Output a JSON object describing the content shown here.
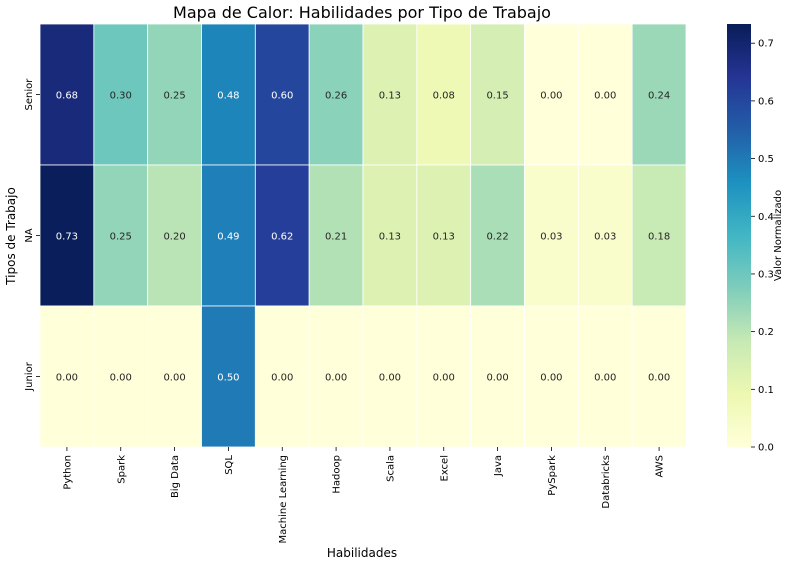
{
  "chart_data": {
    "type": "heatmap",
    "title": "Mapa de Calor: Habilidades por Tipo de Trabajo",
    "xlabel": "Habilidades",
    "ylabel": "Tipos de Trabajo",
    "x_categories": [
      "Python",
      "Spark",
      "Big Data",
      "SQL",
      "Machine Learning",
      "Hadoop",
      "Scala",
      "Excel",
      "Java",
      "PySpark",
      "Databricks",
      "AWS"
    ],
    "y_categories": [
      "Senior",
      "NA",
      "Junior"
    ],
    "values": [
      [
        0.68,
        0.3,
        0.25,
        0.48,
        0.6,
        0.26,
        0.13,
        0.08,
        0.15,
        0.0,
        0.0,
        0.24
      ],
      [
        0.73,
        0.25,
        0.2,
        0.49,
        0.62,
        0.21,
        0.13,
        0.13,
        0.22,
        0.03,
        0.03,
        0.18
      ],
      [
        0.0,
        0.0,
        0.0,
        0.5,
        0.0,
        0.0,
        0.0,
        0.0,
        0.0,
        0.0,
        0.0,
        0.0
      ]
    ],
    "value_format": "0.00",
    "colormap": "YlGnBu",
    "colormap_stops": [
      "#ffffd9",
      "#edf8b1",
      "#c7e9b4",
      "#7fcdbb",
      "#41b6c4",
      "#1d91c0",
      "#225ea8",
      "#253494",
      "#081d58"
    ],
    "vmin": 0,
    "vmax": 0.7333,
    "colorbar": {
      "label": "Valor Normalizado",
      "ticks": [
        0.0,
        0.1,
        0.2,
        0.3,
        0.4,
        0.5,
        0.6,
        0.7
      ],
      "tick_labels": [
        "0.0",
        "0.1",
        "0.2",
        "0.3",
        "0.4",
        "0.5",
        "0.6",
        "0.7"
      ]
    },
    "grid": false,
    "cell_separator_color": "#ffffff"
  }
}
